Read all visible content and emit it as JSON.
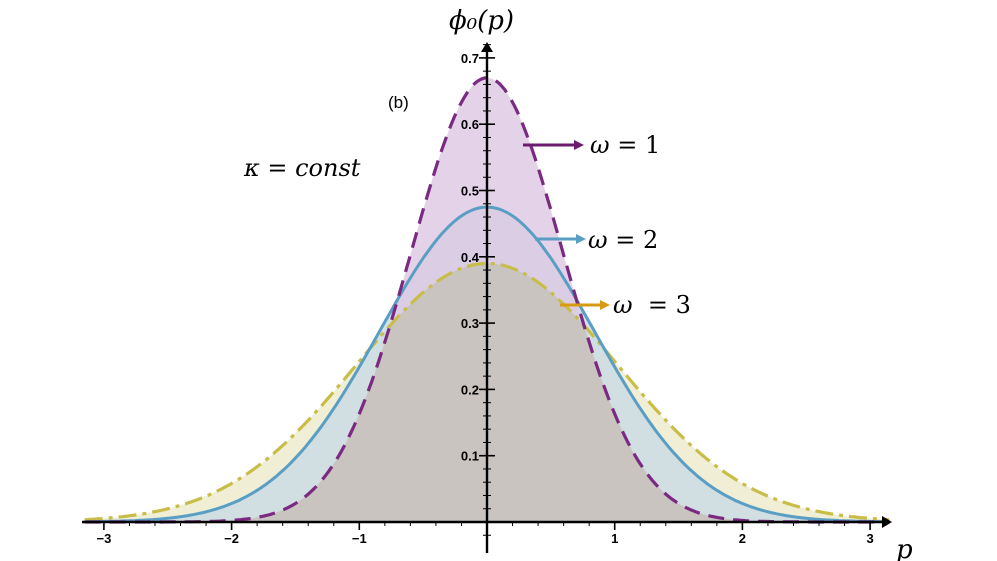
{
  "chart_data": {
    "type": "area",
    "xlabel": "p",
    "ylabel": "ϕ₀(p)",
    "xlim": [
      -3.2,
      3.2
    ],
    "ylim": [
      0,
      0.72
    ],
    "x_ticks": [
      -3,
      -2,
      -1,
      1,
      2,
      3
    ],
    "x_tick_labels": [
      "−3",
      "−2",
      "−1",
      "1",
      "2",
      "3"
    ],
    "y_ticks": [
      0.1,
      0.2,
      0.3,
      0.4,
      0.5,
      0.6,
      0.7
    ],
    "y_tick_labels": [
      "0.1",
      "0.2",
      "0.3",
      "0.4",
      "0.5",
      "0.6",
      "0.7"
    ],
    "panel_label": "(b)",
    "annotation": "κ = const",
    "series": [
      {
        "name": "ω = 1",
        "peak": 0.67,
        "sigma": 0.595,
        "color": "#7b2a82",
        "fill": "#dcc6e2",
        "dash": "dashed",
        "label_parts": [
          "ω",
          " = 1"
        ]
      },
      {
        "name": "ω = 2",
        "peak": 0.475,
        "sigma": 0.84,
        "color": "#5a9ec4",
        "fill": "#c8d8e6",
        "dash": "solid",
        "label_parts": [
          "ω",
          " = 2"
        ]
      },
      {
        "name": "ω  = 3",
        "peak": 0.39,
        "sigma": 1.025,
        "color": "#c9bd4a",
        "fill": "#ecebc9",
        "dash": "dashdot",
        "label_parts": [
          "ω",
          "  = 3"
        ]
      }
    ],
    "arrow_colors": [
      "#6b1c6e",
      "#5a9ec4",
      "#d89a12"
    ],
    "overlap_fill": "#c9c4c0"
  }
}
